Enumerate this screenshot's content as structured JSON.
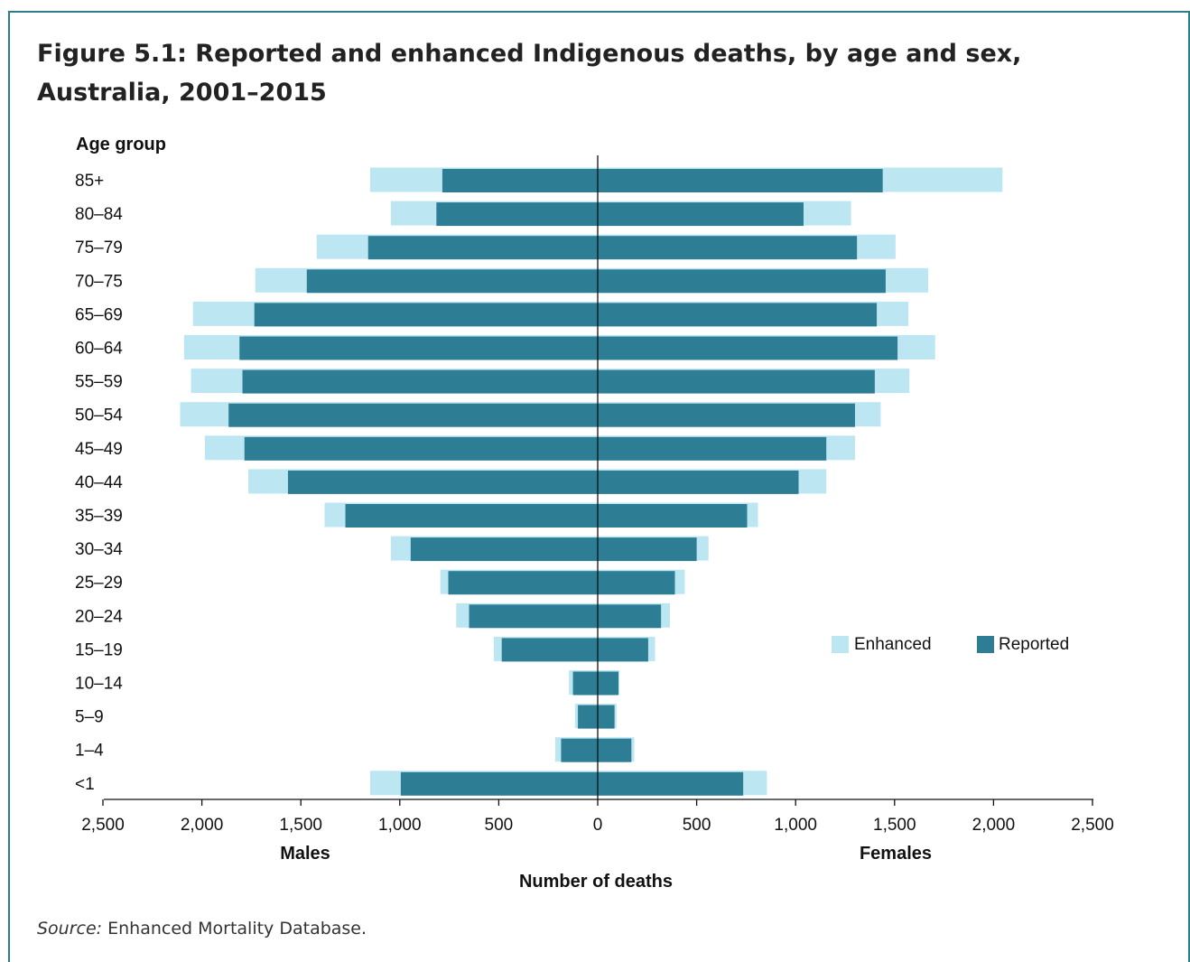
{
  "title": "Figure 5.1: Reported and enhanced Indigenous deaths, by age and sex, Australia, 2001–2015",
  "source": {
    "label": "Source:",
    "text": " Enhanced Mortality Database."
  },
  "colors": {
    "enhanced": "#bde6f3",
    "reported": "#2d7d95",
    "frame": "#2a7f8a"
  },
  "chart_data": {
    "type": "bar",
    "orientation": "horizontal-pyramid",
    "y_axis_title": "Age group",
    "xlabel": "Number of deaths",
    "left_label": "Males",
    "right_label": "Females",
    "xlim": [
      -2500,
      2500
    ],
    "x_ticks": [
      -2500,
      -2000,
      -1500,
      -1000,
      -500,
      0,
      500,
      1000,
      1500,
      2000,
      2500
    ],
    "x_tick_labels": [
      "2,500",
      "2,000",
      "1,500",
      "1,000",
      "500",
      "0",
      "500",
      "1,000",
      "1,500",
      "2,000",
      "2,500"
    ],
    "legend": {
      "placement": "right-middle",
      "entries": [
        "Enhanced",
        "Reported"
      ]
    },
    "categories": [
      "85+",
      "80–84",
      "75–79",
      "70–75",
      "65–69",
      "60–64",
      "55–59",
      "50–54",
      "45–49",
      "40–44",
      "35–39",
      "30–34",
      "25–29",
      "20–24",
      "15–19",
      "10–14",
      "5–9",
      "1–4",
      "<1"
    ],
    "series": [
      {
        "name": "Enhanced",
        "sex": "Males",
        "values": [
          1150,
          1045,
          1420,
          1730,
          2045,
          2090,
          2055,
          2110,
          1985,
          1765,
          1380,
          1045,
          795,
          715,
          525,
          145,
          115,
          215,
          1150
        ]
      },
      {
        "name": "Reported",
        "sex": "Males",
        "values": [
          785,
          815,
          1160,
          1470,
          1735,
          1810,
          1795,
          1865,
          1785,
          1565,
          1275,
          945,
          755,
          650,
          485,
          125,
          100,
          185,
          995
        ]
      },
      {
        "name": "Enhanced",
        "sex": "Females",
        "values": [
          2045,
          1280,
          1505,
          1670,
          1570,
          1705,
          1575,
          1430,
          1300,
          1155,
          810,
          560,
          440,
          365,
          290,
          110,
          95,
          185,
          855
        ]
      },
      {
        "name": "Reported",
        "sex": "Females",
        "values": [
          1440,
          1040,
          1310,
          1455,
          1410,
          1515,
          1400,
          1300,
          1155,
          1015,
          755,
          500,
          390,
          320,
          255,
          105,
          85,
          170,
          735
        ]
      }
    ]
  }
}
